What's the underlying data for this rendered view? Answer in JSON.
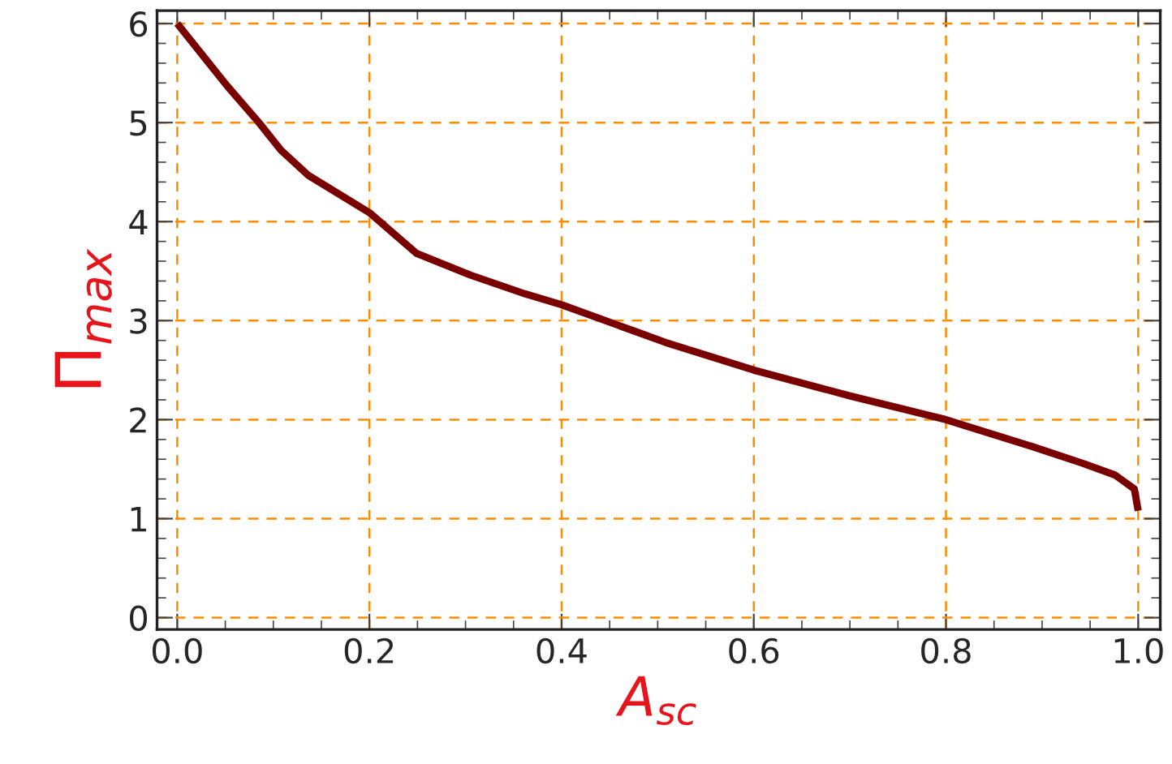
{
  "chart_data": {
    "type": "line",
    "xlabel": "A$_{sc}$",
    "ylabel": "Π$_{max}$",
    "x": [
      0,
      0.052,
      0.085,
      0.108,
      0.136,
      0.2,
      0.249,
      0.305,
      0.362,
      0.4,
      0.474,
      0.508,
      0.6,
      0.7,
      0.8,
      0.886,
      0.942,
      0.976,
      0.996,
      1.0
    ],
    "series": [
      {
        "color": "#7a0000",
        "values": [
          6,
          5.37,
          5,
          4.72,
          4.47,
          4.09,
          3.68,
          3.46,
          3.27,
          3.16,
          2.9,
          2.78,
          2.5,
          2.24,
          2.0,
          1.74,
          1.56,
          1.44,
          1.3,
          1.08
        ]
      }
    ],
    "xlim": [
      -0.021,
      1.023
    ],
    "ylim": [
      -0.12,
      6.13
    ],
    "xticks": [
      {
        "value": 0,
        "label": "0.0"
      },
      {
        "value": 0.2,
        "label": "0.2"
      },
      {
        "value": 0.4,
        "label": "0.4"
      },
      {
        "value": 0.6,
        "label": "0.6"
      },
      {
        "value": 0.8,
        "label": "0.8"
      },
      {
        "value": 1.0,
        "label": "1.0"
      }
    ],
    "yticks": [
      0,
      1,
      2,
      3,
      4,
      5,
      6
    ],
    "grid": true,
    "line_style": "solid",
    "marker": "none"
  }
}
